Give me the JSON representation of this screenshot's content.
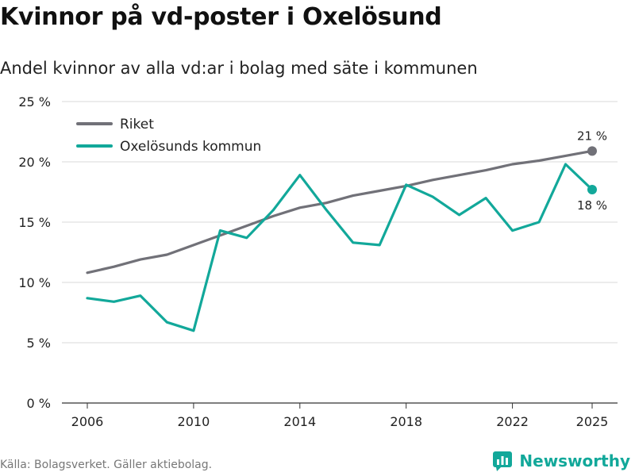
{
  "title": "Kvinnor på vd-poster i Oxelösund",
  "subtitle": "Andel kvinnor av alla vd:ar i bolag med säte i kommunen",
  "source": "Källa: Bolagsverket. Gäller aktiebolag.",
  "brand": "Newsworthy",
  "colors": {
    "riket": "#717178",
    "oxelosund": "#12a89a",
    "grid": "#d9d9d9",
    "brand": "#12a89a"
  },
  "chart_data": {
    "type": "line",
    "title": "Kvinnor på vd-poster i Oxelösund",
    "xlabel": "",
    "ylabel": "",
    "x": [
      2006,
      2007,
      2008,
      2009,
      2010,
      2011,
      2012,
      2013,
      2014,
      2015,
      2016,
      2017,
      2018,
      2019,
      2020,
      2021,
      2022,
      2023,
      2024,
      2025
    ],
    "xlim": [
      2006,
      2025
    ],
    "ylim": [
      0,
      25
    ],
    "x_ticks": [
      2006,
      2010,
      2014,
      2018,
      2022,
      2025
    ],
    "x_tick_labels": [
      "2006",
      "2010",
      "2014",
      "2018",
      "2022",
      "2025"
    ],
    "y_ticks": [
      0,
      5,
      10,
      15,
      20,
      25
    ],
    "y_tick_labels": [
      "0 %",
      "5 %",
      "10 %",
      "15 %",
      "20 %",
      "25 %"
    ],
    "grid": true,
    "legend_position": "top-left",
    "series": [
      {
        "name": "Riket",
        "color": "#717178",
        "values": [
          10.8,
          11.3,
          11.9,
          12.3,
          13.1,
          13.9,
          14.7,
          15.5,
          16.2,
          16.6,
          17.2,
          17.6,
          18.0,
          18.5,
          18.9,
          19.3,
          19.8,
          20.1,
          20.5,
          20.9
        ],
        "end_label": "21 %"
      },
      {
        "name": "Oxelösunds kommun",
        "color": "#12a89a",
        "values": [
          8.7,
          8.4,
          8.9,
          6.7,
          6.0,
          14.3,
          13.7,
          16.0,
          18.9,
          16.0,
          13.3,
          13.1,
          18.1,
          17.1,
          15.6,
          17.0,
          14.3,
          15.0,
          19.8,
          17.7
        ],
        "end_label": "18 %"
      }
    ]
  }
}
